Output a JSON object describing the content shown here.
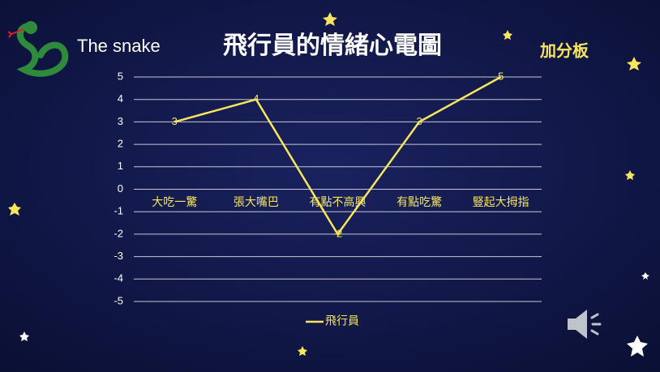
{
  "header": {
    "brand": "The snake",
    "button": "加分板"
  },
  "chart_data": {
    "type": "line",
    "title": "飛行員的情緒心電圖",
    "categories": [
      "大吃一驚",
      "張大嘴巴",
      "有點不高興",
      "有點吃驚",
      "豎起大拇指"
    ],
    "series": [
      {
        "name": "飛行員",
        "color": "#f6e55d",
        "values": [
          3,
          4,
          -2,
          3,
          5
        ]
      }
    ],
    "ylim": [
      -5,
      5
    ],
    "yticks": [
      -5,
      -4,
      -3,
      -2,
      -1,
      0,
      1,
      2,
      3,
      4,
      5
    ],
    "grid": true,
    "data_labels": true,
    "legend": "bottom"
  }
}
